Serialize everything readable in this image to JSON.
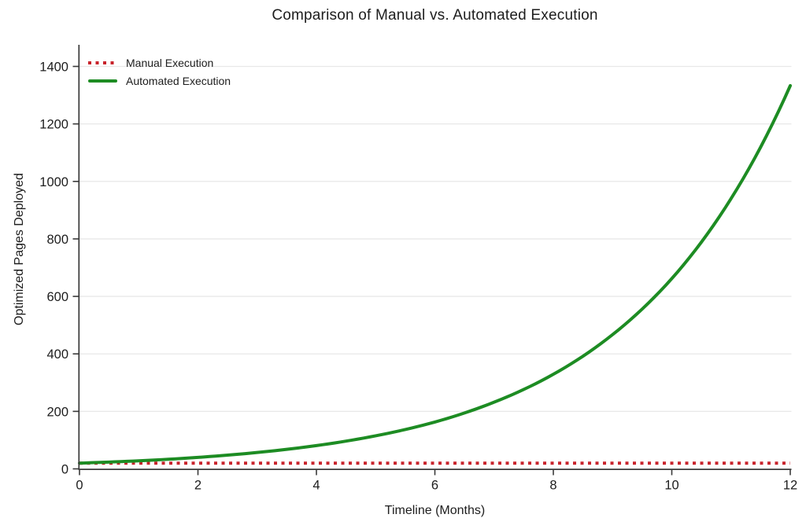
{
  "chart_data": {
    "type": "line",
    "title": "Comparison of Manual vs. Automated Execution",
    "xlabel": "Timeline (Months)",
    "ylabel": "Optimized Pages Deployed",
    "x": [
      0,
      1,
      2,
      3,
      4,
      5,
      6,
      7,
      8,
      9,
      10,
      11,
      12
    ],
    "series": [
      {
        "name": "Manual Execution",
        "color": "#c8232b",
        "line_style": "dotted",
        "line_width": 4,
        "values": [
          20,
          20,
          20,
          20,
          20,
          20,
          20,
          20,
          20,
          20,
          20,
          20,
          20
        ]
      },
      {
        "name": "Automated Execution",
        "color": "#1d8c23",
        "line_style": "solid",
        "line_width": 4,
        "values": [
          20,
          28,
          40,
          57,
          81,
          115,
          163,
          232,
          329,
          467,
          662,
          940,
          1333
        ]
      }
    ],
    "xticks": [
      0,
      2,
      4,
      6,
      8,
      10,
      12
    ],
    "yticks": [
      0,
      200,
      400,
      600,
      800,
      1000,
      1200,
      1400
    ],
    "xlim": [
      0,
      12
    ],
    "ylim": [
      0,
      1475
    ],
    "grid": "horizontal-only",
    "legend_position": "upper-left",
    "colors": {
      "grid": "#e8e8e8",
      "axis": "#3a3a3a",
      "text": "#1d1d1d",
      "background": "#ffffff"
    }
  }
}
